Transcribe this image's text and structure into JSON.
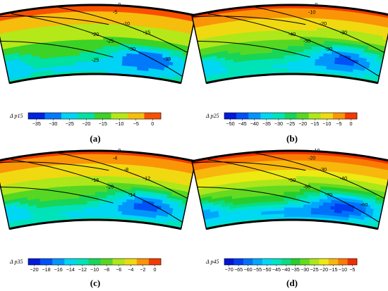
{
  "chart_data": [
    {
      "type": "heatmap",
      "panel": "(a)",
      "colorbar_title": "Δ p15",
      "colorbar_ticks": [
        "-35",
        "-30",
        "-25",
        "-20",
        "-15",
        "-10",
        "-5",
        "0"
      ],
      "colorbar_range": [
        -37.5,
        2.5
      ],
      "contour_labels": [
        {
          "text": "0",
          "value": 0
        },
        {
          "text": "-5",
          "value": -5
        },
        {
          "text": "-10",
          "value": -10
        },
        {
          "text": "-15",
          "value": -15
        },
        {
          "text": "-20",
          "value": -20
        },
        {
          "text": "-25",
          "value": -25
        },
        {
          "text": "-30",
          "value": -30
        },
        {
          "text": "-35",
          "value": -35
        },
        {
          "text": "-25",
          "value": -25
        }
      ],
      "field": {
        "top": 0,
        "hub": -20,
        "minimum": -36,
        "trough": -26
      }
    },
    {
      "type": "heatmap",
      "panel": "(b)",
      "colorbar_title": "Δ p25",
      "colorbar_ticks": [
        "-50",
        "-45",
        "-40",
        "-35",
        "-30",
        "-25",
        "-20",
        "-15",
        "-10",
        "-5",
        "0"
      ],
      "colorbar_range": [
        -52.5,
        2.5
      ],
      "contour_labels": [
        {
          "text": "0",
          "value": 0
        },
        {
          "text": "-10",
          "value": -10
        },
        {
          "text": "-20",
          "value": -20
        },
        {
          "text": "-30",
          "value": -30
        },
        {
          "text": "-40",
          "value": -40
        },
        {
          "text": "-50",
          "value": -50
        },
        {
          "text": "-30",
          "value": -30
        }
      ],
      "field": {
        "top": 0,
        "hub": -28,
        "minimum": -50,
        "trough": -36
      }
    },
    {
      "type": "heatmap",
      "panel": "(c)",
      "colorbar_title": "Δ p35",
      "colorbar_ticks": [
        "-20",
        "-18",
        "-16",
        "-14",
        "-12",
        "-10",
        "-8",
        "-6",
        "-4",
        "-2",
        "0"
      ],
      "colorbar_range": [
        -21,
        1
      ],
      "contour_labels": [
        {
          "text": "0",
          "value": 0
        },
        {
          "text": "-4",
          "value": -4
        },
        {
          "text": "-8",
          "value": -8
        },
        {
          "text": "-12",
          "value": -12
        },
        {
          "text": "-16",
          "value": -16
        },
        {
          "text": "-20",
          "value": -20
        },
        {
          "text": "-14",
          "value": -14
        }
      ],
      "field": {
        "top": 0,
        "hub": -11,
        "minimum": -20,
        "trough": -15
      }
    },
    {
      "type": "heatmap",
      "panel": "(d)",
      "colorbar_title": "Δ p45",
      "colorbar_ticks": [
        "-70",
        "-65",
        "-60",
        "-55",
        "-50",
        "-45",
        "-40",
        "-35",
        "-30",
        "-25",
        "-20",
        "-15",
        "-10",
        "-5"
      ],
      "colorbar_range": [
        -72.5,
        -2.5
      ],
      "contour_labels": [
        {
          "text": "-10",
          "value": -10
        },
        {
          "text": "-20",
          "value": -20
        },
        {
          "text": "-30",
          "value": -30
        },
        {
          "text": "-40",
          "value": -40
        },
        {
          "text": "-50",
          "value": -50
        },
        {
          "text": "-60",
          "value": -60
        },
        {
          "text": "-70",
          "value": -70
        },
        {
          "text": "-60",
          "value": -60
        }
      ],
      "field": {
        "top": -5,
        "hub": -40,
        "minimum": -70,
        "trough": -62
      }
    }
  ]
}
